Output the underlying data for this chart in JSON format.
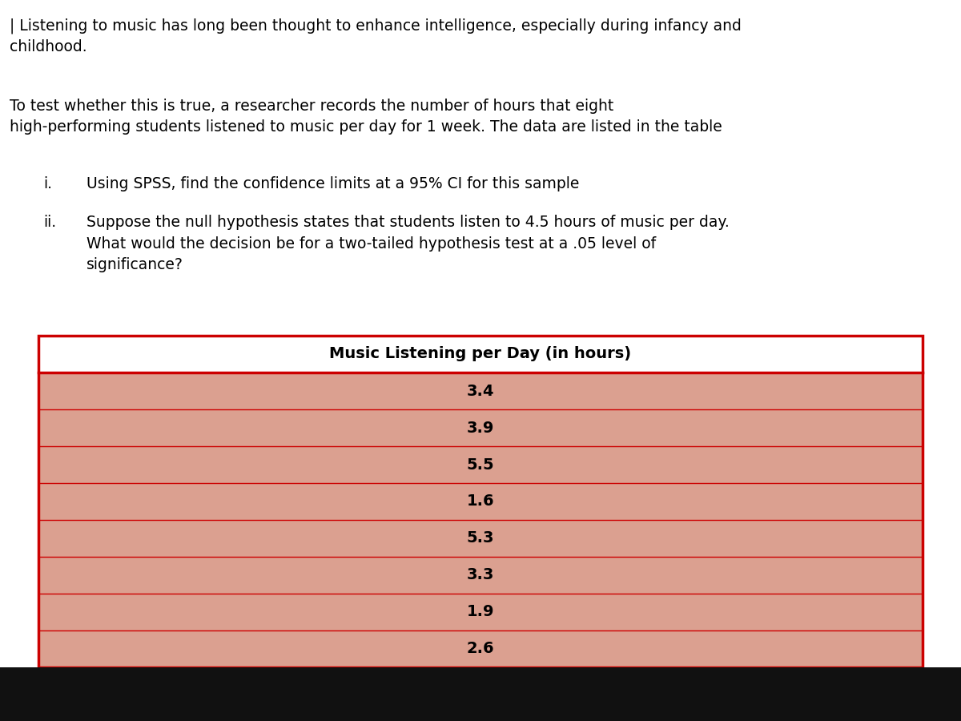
{
  "paragraph1": "| Listening to music has long been thought to enhance intelligence, especially during infancy and\nchildhood.",
  "paragraph2": "To test whether this is true, a researcher records the number of hours that eight\nhigh-performing students listened to music per day for 1 week. The data are listed in the table",
  "item_i": "Using SPSS, find the confidence limits at a 95% CI for this sample",
  "item_ii_line1": "Suppose the null hypothesis states that students listen to 4.5 hours of music per day.",
  "item_ii_line2": "What would the decision be for a two-tailed hypothesis test at a .05 level of",
  "item_ii_line3": "significance?",
  "table_title": "Music Listening per Day (in hours)",
  "table_values": [
    "3.4",
    "3.9",
    "5.5",
    "1.6",
    "5.3",
    "3.3",
    "1.9",
    "2.6"
  ],
  "white_bg": "#ffffff",
  "dark_bg": "#111111",
  "table_border_color": "#cc0000",
  "table_row_line_color": "#cc0000",
  "table_cell_bg": "#dba090",
  "text_color": "#000000",
  "font_size_body": 13.5,
  "font_size_table_title": 14,
  "font_size_table_values": 14,
  "figsize": [
    12,
    9
  ],
  "dpi": 100
}
